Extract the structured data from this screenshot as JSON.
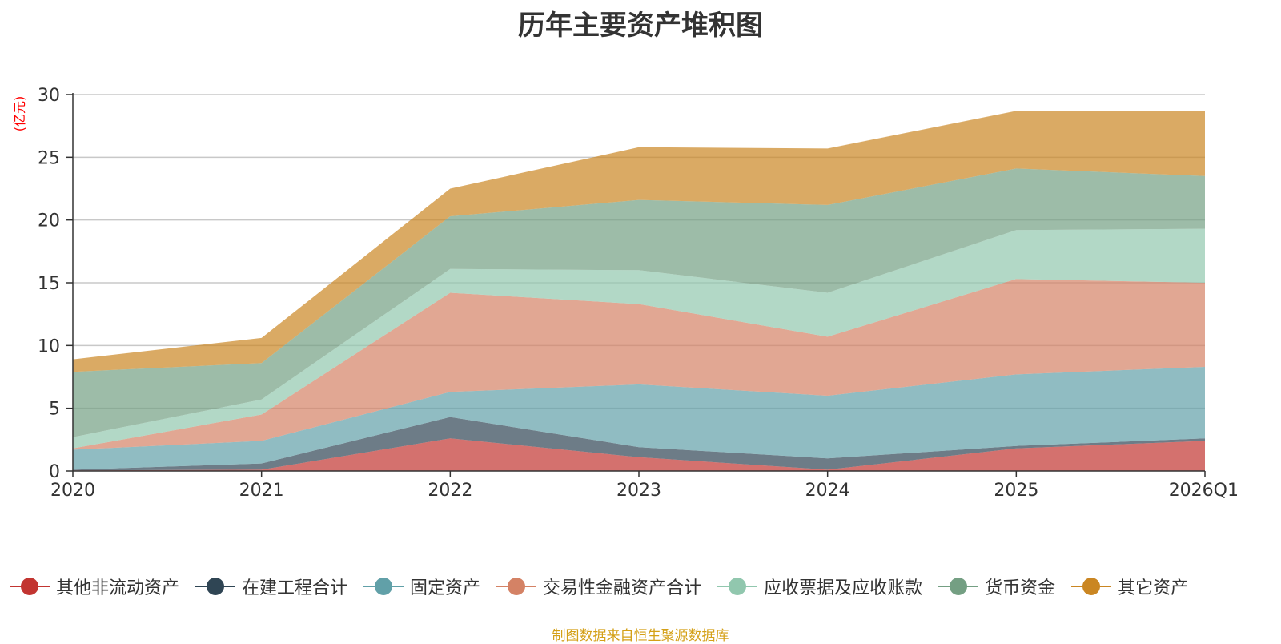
{
  "chart_data": {
    "type": "area",
    "stacked": true,
    "title": "历年主要资产堆积图",
    "ylabel": "(亿元)",
    "xlabel": "",
    "categories": [
      "2020",
      "2021",
      "2022",
      "2023",
      "2024",
      "2025",
      "2026Q1"
    ],
    "ylim": [
      0,
      30
    ],
    "yticks": [
      0,
      5,
      10,
      15,
      20,
      25,
      30
    ],
    "grid": true,
    "legend_position": "bottom",
    "series": [
      {
        "name": "其他非流动资产",
        "color": "#c23531",
        "values": [
          0.05,
          0.1,
          2.6,
          1.1,
          0.1,
          1.8,
          2.4
        ]
      },
      {
        "name": "在建工程合计",
        "color": "#2f4554",
        "values": [
          0.05,
          0.5,
          1.7,
          0.8,
          0.9,
          0.2,
          0.2
        ]
      },
      {
        "name": "固定资产",
        "color": "#61a0a8",
        "values": [
          1.6,
          1.8,
          2.0,
          5.0,
          5.0,
          5.7,
          5.7
        ]
      },
      {
        "name": "交易性金融资产合计",
        "color": "#d48265",
        "values": [
          0.1,
          2.1,
          7.9,
          6.4,
          4.7,
          7.6,
          6.7
        ]
      },
      {
        "name": "应收票据及应收账款",
        "color": "#91c7ae",
        "values": [
          0.9,
          1.2,
          1.9,
          2.7,
          3.5,
          3.9,
          4.3
        ]
      },
      {
        "name": "货币资金",
        "color": "#749f83",
        "values": [
          5.2,
          2.9,
          4.2,
          5.6,
          7.0,
          4.9,
          4.2
        ]
      },
      {
        "name": "其它资产",
        "color": "#ca8622",
        "values": [
          1.0,
          2.0,
          2.2,
          4.2,
          4.5,
          4.6,
          5.2
        ]
      }
    ]
  },
  "source_note": "制图数据来自恒生聚源数据库",
  "source_color": "#d4a017"
}
